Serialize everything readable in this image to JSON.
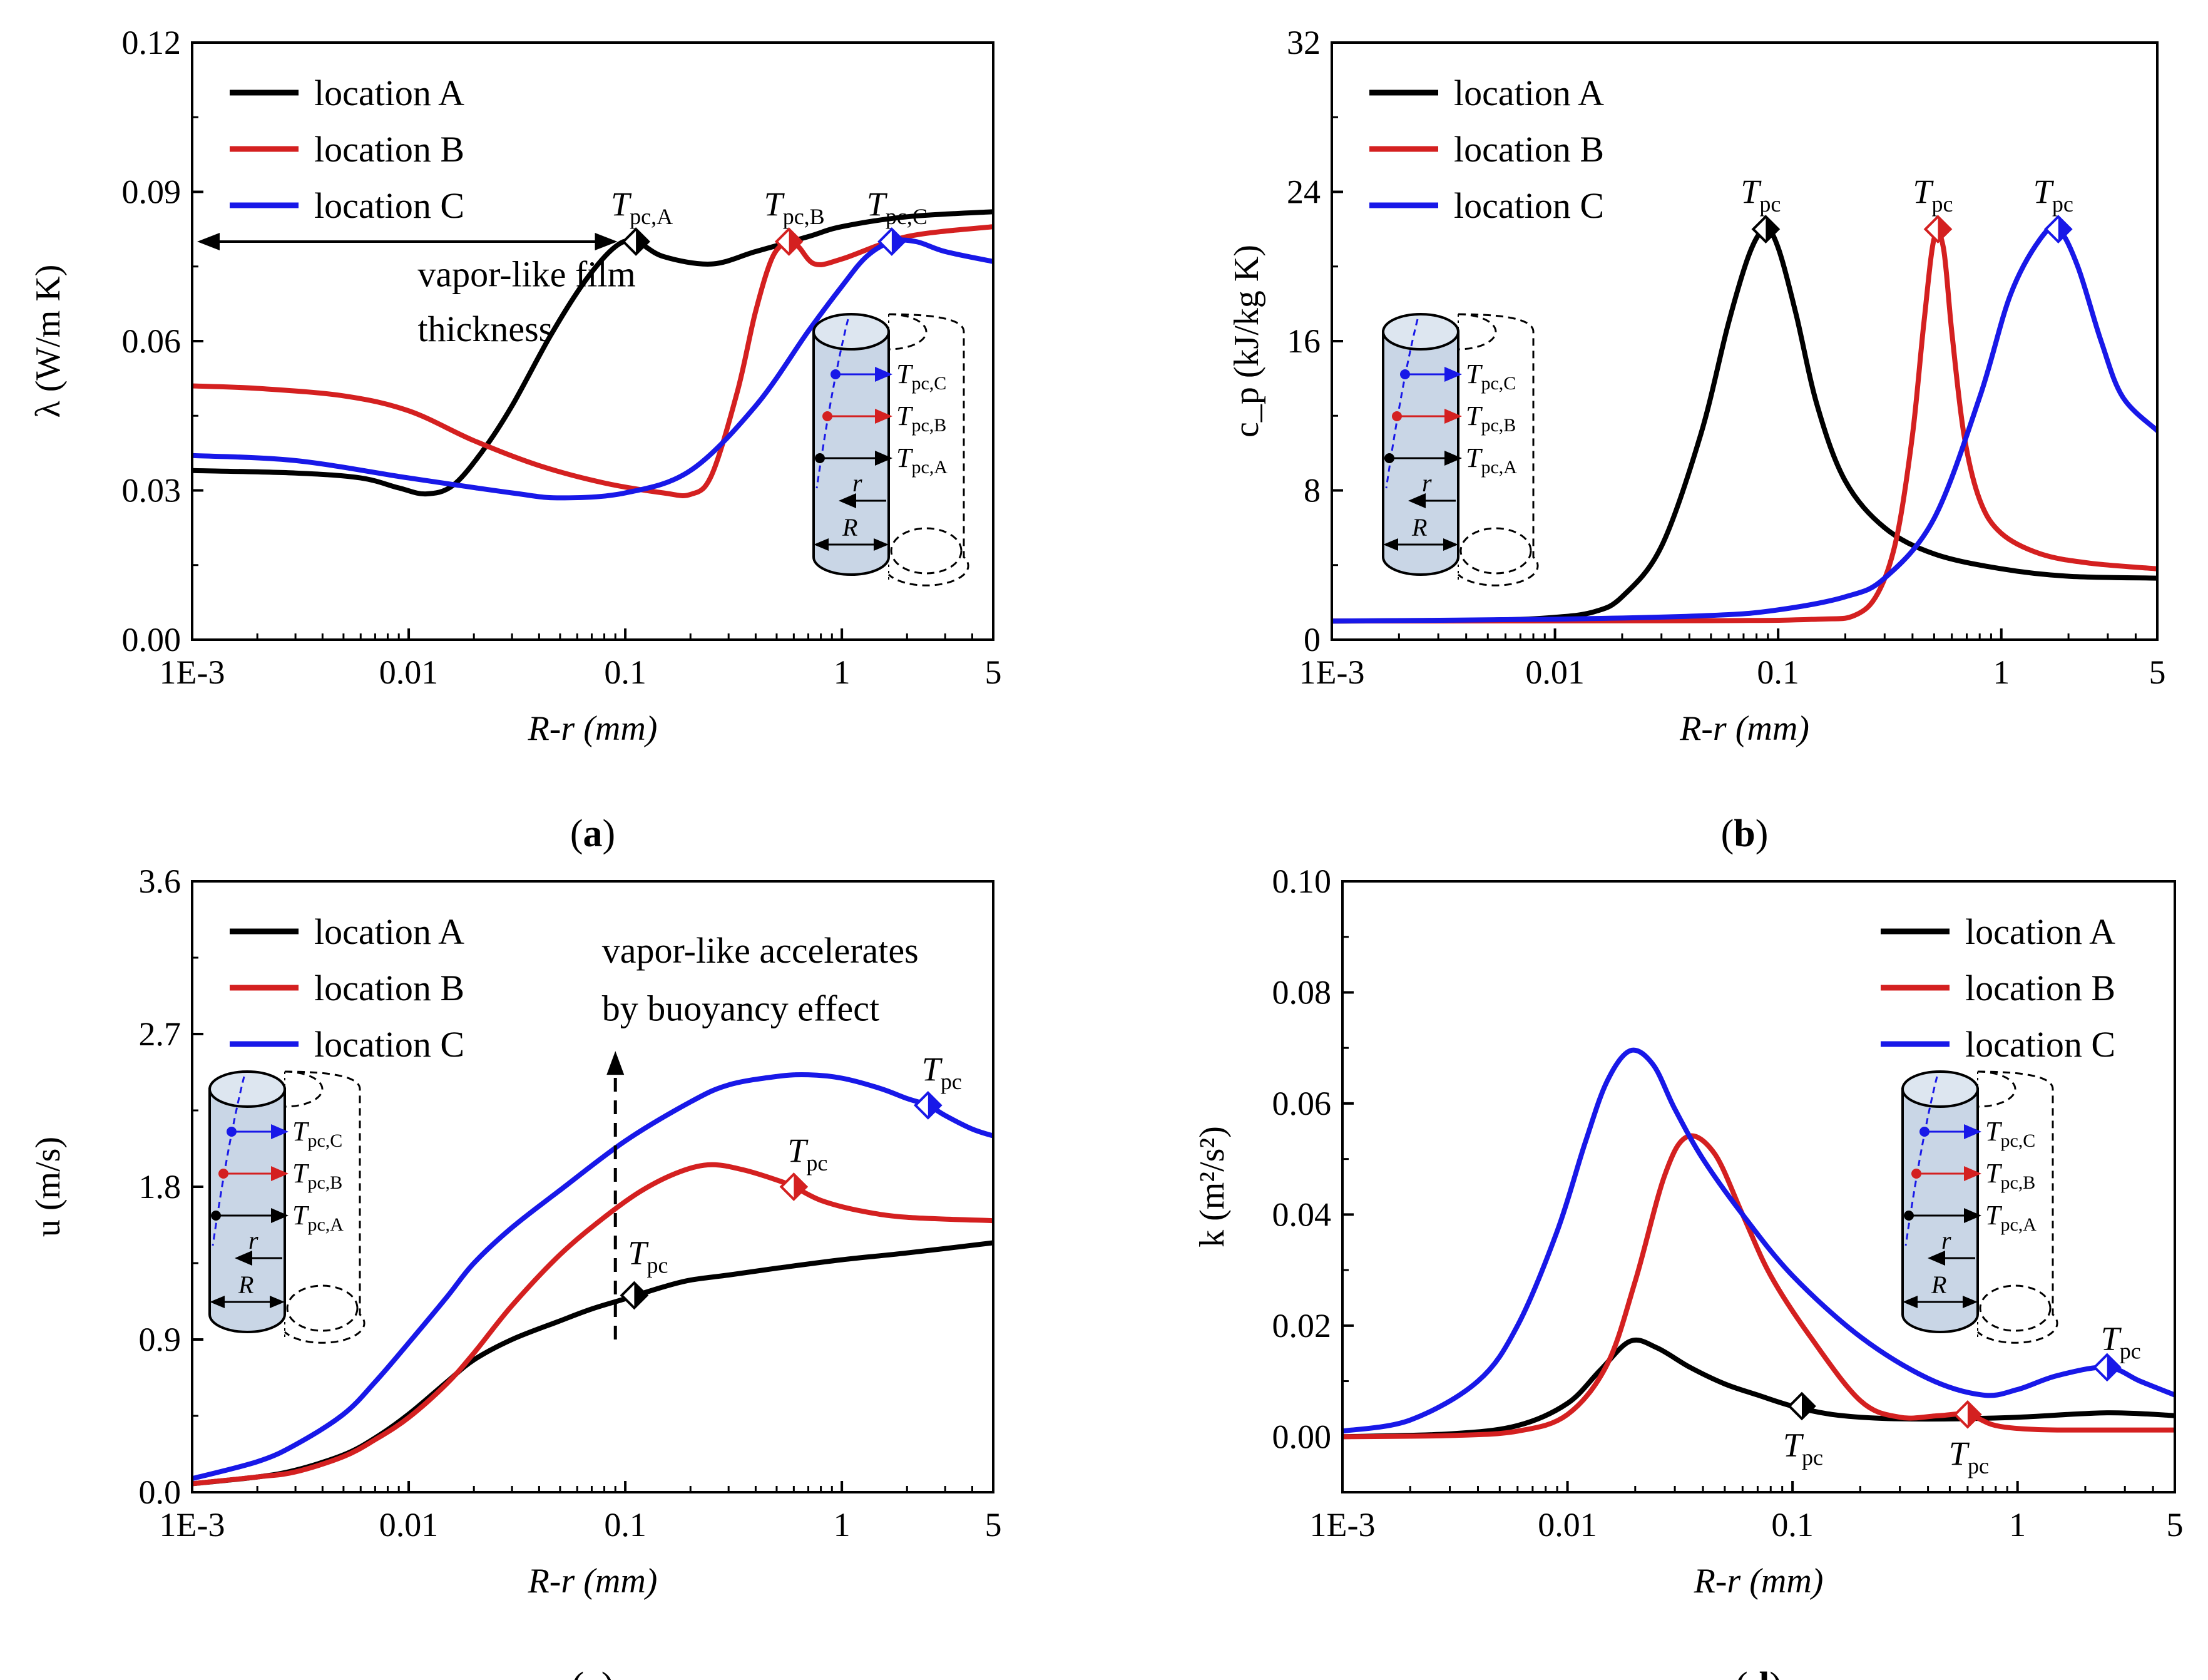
{
  "chart_data": [
    {
      "id": "a",
      "type": "line",
      "panel_label": "a",
      "xlabel": "R-r (mm)",
      "ylabel": "λ (W/m K)",
      "xscale": "log",
      "xlim": [
        0.001,
        5
      ],
      "ylim": [
        0,
        0.12
      ],
      "xticks": [
        0.001,
        0.01,
        0.1,
        1,
        5
      ],
      "xtick_labels": [
        "1E-3",
        "0.01",
        "0.1",
        "1",
        "5"
      ],
      "yticks": [
        0,
        0.03,
        0.06,
        0.09,
        0.12
      ],
      "ytick_labels": [
        "0.00",
        "0.03",
        "0.06",
        "0.09",
        "0.12"
      ],
      "legend": {
        "placement": "top-left",
        "entries": [
          "location A",
          "location B",
          "location C"
        ]
      },
      "series": [
        {
          "name": "location A",
          "color": "#000000",
          "x": [
            0.001,
            0.003,
            0.006,
            0.009,
            0.012,
            0.016,
            0.022,
            0.03,
            0.045,
            0.065,
            0.09,
            0.112,
            0.15,
            0.25,
            0.4,
            0.7,
            1,
            2,
            5
          ],
          "y": [
            0.034,
            0.0335,
            0.0325,
            0.0305,
            0.0293,
            0.031,
            0.038,
            0.047,
            0.061,
            0.072,
            0.079,
            0.08,
            0.077,
            0.0755,
            0.078,
            0.081,
            0.083,
            0.085,
            0.086
          ]
        },
        {
          "name": "location B",
          "color": "#d42020",
          "x": [
            0.001,
            0.002,
            0.005,
            0.01,
            0.02,
            0.04,
            0.08,
            0.15,
            0.2,
            0.25,
            0.33,
            0.4,
            0.48,
            0.57,
            0.63,
            0.75,
            1,
            2,
            5
          ],
          "y": [
            0.051,
            0.0505,
            0.049,
            0.046,
            0.04,
            0.035,
            0.0315,
            0.0295,
            0.0292,
            0.033,
            0.05,
            0.066,
            0.077,
            0.08,
            0.079,
            0.0755,
            0.0765,
            0.081,
            0.083
          ]
        },
        {
          "name": "location C",
          "color": "#1818e8",
          "x": [
            0.001,
            0.003,
            0.01,
            0.03,
            0.05,
            0.1,
            0.2,
            0.4,
            0.7,
            1,
            1.3,
            1.7,
            2.2,
            3,
            5
          ],
          "y": [
            0.037,
            0.036,
            0.0325,
            0.0295,
            0.0285,
            0.0295,
            0.034,
            0.047,
            0.062,
            0.071,
            0.077,
            0.08,
            0.08,
            0.078,
            0.076
          ]
        }
      ],
      "markers": [
        {
          "x": 0.112,
          "y": 0.08,
          "color": "#000000",
          "label_main": "T",
          "label_sub": "pc,A"
        },
        {
          "x": 0.57,
          "y": 0.08,
          "color": "#d42020",
          "label_main": "T",
          "label_sub": "pc,B"
        },
        {
          "x": 1.7,
          "y": 0.08,
          "color": "#1818e8",
          "label_main": "T",
          "label_sub": "pc,C"
        }
      ],
      "annotations": [
        {
          "text": "vapor-like film",
          "x": 0.011,
          "y": 0.071
        },
        {
          "text": "thickness",
          "x": 0.011,
          "y": 0.06
        }
      ],
      "arrows": [
        {
          "x1": 0.001,
          "y1": 0.08,
          "x2": 0.092,
          "y2": 0.08,
          "style": "double"
        }
      ],
      "inset": {
        "position": "right",
        "labels": [
          "T",
          "pc,C",
          "T",
          "pc,B",
          "T",
          "pc,A",
          "r",
          "R"
        ]
      }
    },
    {
      "id": "b",
      "type": "line",
      "panel_label": "b",
      "xlabel": "R-r (mm)",
      "ylabel": "c_p (kJ/kg K)",
      "xscale": "log",
      "xlim": [
        0.001,
        5
      ],
      "ylim": [
        0,
        32
      ],
      "xticks": [
        0.001,
        0.01,
        0.1,
        1,
        5
      ],
      "xtick_labels": [
        "1E-3",
        "0.01",
        "0.1",
        "1",
        "5"
      ],
      "yticks": [
        0,
        8,
        16,
        24,
        32
      ],
      "ytick_labels": [
        "0",
        "8",
        "16",
        "24",
        "32"
      ],
      "legend": {
        "placement": "top-left",
        "entries": [
          "location A",
          "location B",
          "location C"
        ]
      },
      "series": [
        {
          "name": "location A",
          "color": "#000000",
          "x": [
            0.001,
            0.005,
            0.01,
            0.015,
            0.02,
            0.03,
            0.045,
            0.06,
            0.075,
            0.088,
            0.1,
            0.12,
            0.15,
            0.2,
            0.3,
            0.5,
            1,
            2,
            5
          ],
          "y": [
            1.0,
            1.05,
            1.2,
            1.5,
            2.3,
            5.0,
            11.0,
            17.0,
            20.8,
            22.0,
            21.0,
            17.5,
            12.5,
            8.5,
            6.0,
            4.6,
            3.8,
            3.4,
            3.3
          ]
        },
        {
          "name": "location B",
          "color": "#d42020",
          "x": [
            0.001,
            0.05,
            0.15,
            0.22,
            0.28,
            0.34,
            0.4,
            0.45,
            0.5,
            0.55,
            0.6,
            0.68,
            0.8,
            1,
            1.5,
            2.5,
            5
          ],
          "y": [
            1.0,
            1.02,
            1.1,
            1.3,
            2.5,
            5.5,
            11.0,
            17.0,
            21.5,
            21.0,
            16.5,
            11.0,
            7.5,
            5.7,
            4.6,
            4.1,
            3.8
          ]
        },
        {
          "name": "location C",
          "color": "#1818e8",
          "x": [
            0.001,
            0.01,
            0.05,
            0.1,
            0.2,
            0.3,
            0.5,
            0.8,
            1.1,
            1.5,
            1.8,
            2.2,
            2.8,
            3.5,
            5
          ],
          "y": [
            1.0,
            1.1,
            1.3,
            1.6,
            2.3,
            3.3,
            6.5,
            13.0,
            18.5,
            21.5,
            22.0,
            20.0,
            16.0,
            13.0,
            11.2
          ]
        }
      ],
      "markers": [
        {
          "x": 0.088,
          "y": 22.0,
          "color": "#000000",
          "label_main": "T",
          "label_sub": "pc"
        },
        {
          "x": 0.52,
          "y": 22.0,
          "color": "#d42020",
          "label_main": "T",
          "label_sub": "pc"
        },
        {
          "x": 1.8,
          "y": 22.0,
          "color": "#1818e8",
          "label_main": "T",
          "label_sub": "pc"
        }
      ],
      "annotations": [],
      "arrows": [],
      "inset": {
        "position": "left",
        "labels": [
          "T",
          "pc,C",
          "T",
          "pc,B",
          "T",
          "pc,A",
          "r",
          "R"
        ]
      }
    },
    {
      "id": "c",
      "type": "line",
      "panel_label": "c",
      "xlabel": "R-r (mm)",
      "ylabel": "u (m/s)",
      "xscale": "log",
      "xlim": [
        0.001,
        5
      ],
      "ylim": [
        0,
        3.6
      ],
      "xticks": [
        0.001,
        0.01,
        0.1,
        1,
        5
      ],
      "xtick_labels": [
        "1E-3",
        "0.01",
        "0.1",
        "1",
        "5"
      ],
      "yticks": [
        0,
        0.9,
        1.8,
        2.7,
        3.6
      ],
      "ytick_labels": [
        "0.0",
        "0.9",
        "1.8",
        "2.7",
        "3.6"
      ],
      "legend": {
        "placement": "top-left",
        "entries": [
          "location A",
          "location B",
          "location C"
        ]
      },
      "series": [
        {
          "name": "location A",
          "color": "#000000",
          "x": [
            0.001,
            0.002,
            0.003,
            0.005,
            0.007,
            0.01,
            0.015,
            0.02,
            0.03,
            0.05,
            0.07,
            0.1,
            0.15,
            0.2,
            0.3,
            0.5,
            1,
            2,
            5
          ],
          "y": [
            0.05,
            0.09,
            0.13,
            0.22,
            0.32,
            0.46,
            0.65,
            0.78,
            0.9,
            1.01,
            1.08,
            1.14,
            1.21,
            1.25,
            1.28,
            1.32,
            1.37,
            1.41,
            1.47
          ]
        },
        {
          "name": "location B",
          "color": "#d42020",
          "x": [
            0.001,
            0.002,
            0.003,
            0.005,
            0.007,
            0.01,
            0.015,
            0.02,
            0.03,
            0.05,
            0.08,
            0.12,
            0.18,
            0.25,
            0.35,
            0.5,
            0.6,
            0.8,
            1.2,
            2,
            5
          ],
          "y": [
            0.05,
            0.09,
            0.12,
            0.21,
            0.31,
            0.44,
            0.64,
            0.82,
            1.1,
            1.4,
            1.62,
            1.78,
            1.89,
            1.93,
            1.9,
            1.84,
            1.8,
            1.72,
            1.66,
            1.62,
            1.6
          ]
        },
        {
          "name": "location C",
          "color": "#1818e8",
          "x": [
            0.001,
            0.002,
            0.003,
            0.005,
            0.007,
            0.01,
            0.015,
            0.02,
            0.03,
            0.05,
            0.1,
            0.2,
            0.3,
            0.5,
            0.7,
            1,
            1.5,
            2,
            2.5,
            3,
            4,
            5
          ],
          "y": [
            0.08,
            0.18,
            0.28,
            0.46,
            0.65,
            0.88,
            1.15,
            1.35,
            1.56,
            1.78,
            2.07,
            2.3,
            2.4,
            2.45,
            2.46,
            2.44,
            2.38,
            2.32,
            2.28,
            2.22,
            2.14,
            2.1
          ]
        }
      ],
      "markers": [
        {
          "x": 0.11,
          "y": 1.16,
          "color": "#000000",
          "label_main": "T",
          "label_sub": "pc"
        },
        {
          "x": 0.6,
          "y": 1.8,
          "color": "#d42020",
          "label_main": "T",
          "label_sub": "pc"
        },
        {
          "x": 2.5,
          "y": 2.28,
          "color": "#1818e8",
          "label_main": "T",
          "label_sub": "pc"
        }
      ],
      "annotations": [
        {
          "text": "vapor-like accelerates",
          "x": 0.078,
          "y": 3.12
        },
        {
          "text": "by buoyancy effect",
          "x": 0.078,
          "y": 2.78
        }
      ],
      "arrows": [
        {
          "x1": 0.09,
          "y1": 0.9,
          "x2": 0.09,
          "y2": 2.6,
          "style": "dashed-up"
        }
      ],
      "inset": {
        "position": "left",
        "labels": [
          "T",
          "pc,C",
          "T",
          "pc,B",
          "T",
          "pc,A",
          "r",
          "R"
        ]
      }
    },
    {
      "id": "d",
      "type": "line",
      "panel_label": "d",
      "xlabel": "R-r (mm)",
      "ylabel": "k (m²/s²)",
      "xscale": "log",
      "xlim": [
        0.001,
        5
      ],
      "ylim": [
        -0.01,
        0.1
      ],
      "xticks": [
        0.001,
        0.01,
        0.1,
        1,
        5
      ],
      "xtick_labels": [
        "1E-3",
        "0.01",
        "0.1",
        "1",
        "5"
      ],
      "yticks": [
        0,
        0.02,
        0.04,
        0.06,
        0.08,
        0.1
      ],
      "ytick_labels": [
        "0.00",
        "0.02",
        "0.04",
        "0.06",
        "0.08",
        "0.10"
      ],
      "legend": {
        "placement": "top-right",
        "entries": [
          "location A",
          "location B",
          "location C"
        ]
      },
      "series": [
        {
          "name": "location A",
          "color": "#000000",
          "x": [
            0.001,
            0.003,
            0.006,
            0.01,
            0.014,
            0.019,
            0.025,
            0.035,
            0.05,
            0.07,
            0.1,
            0.15,
            0.25,
            0.5,
            1,
            2.5,
            5
          ],
          "y": [
            0.0,
            0.0005,
            0.002,
            0.006,
            0.012,
            0.0172,
            0.016,
            0.0125,
            0.0095,
            0.0075,
            0.0055,
            0.004,
            0.0033,
            0.0032,
            0.0035,
            0.0043,
            0.0038
          ]
        },
        {
          "name": "location B",
          "color": "#d42020",
          "x": [
            0.001,
            0.003,
            0.006,
            0.01,
            0.015,
            0.02,
            0.027,
            0.034,
            0.045,
            0.06,
            0.08,
            0.12,
            0.2,
            0.3,
            0.45,
            0.6,
            0.8,
            1.2,
            2,
            5
          ],
          "y": [
            0.0,
            0.0002,
            0.001,
            0.004,
            0.013,
            0.028,
            0.047,
            0.054,
            0.051,
            0.04,
            0.029,
            0.018,
            0.0065,
            0.0035,
            0.0038,
            0.004,
            0.002,
            0.0013,
            0.0012,
            0.0012
          ]
        },
        {
          "name": "location C",
          "color": "#1818e8",
          "x": [
            0.001,
            0.002,
            0.004,
            0.006,
            0.009,
            0.012,
            0.015,
            0.019,
            0.024,
            0.03,
            0.04,
            0.06,
            0.1,
            0.2,
            0.4,
            0.7,
            1,
            1.5,
            2.5,
            3.5,
            5
          ],
          "y": [
            0.001,
            0.003,
            0.01,
            0.02,
            0.037,
            0.053,
            0.064,
            0.0695,
            0.067,
            0.059,
            0.05,
            0.04,
            0.029,
            0.018,
            0.0105,
            0.0075,
            0.0085,
            0.011,
            0.0125,
            0.01,
            0.0075
          ]
        }
      ],
      "markers": [
        {
          "x": 0.11,
          "y": 0.0055,
          "color": "#000000",
          "label_main": "T",
          "label_sub": "pc"
        },
        {
          "x": 0.6,
          "y": 0.004,
          "color": "#d42020",
          "label_main": "T",
          "label_sub": "pc"
        },
        {
          "x": 2.5,
          "y": 0.0125,
          "color": "#1818e8",
          "label_main": "T",
          "label_sub": "pc"
        }
      ],
      "annotations": [],
      "arrows": [],
      "inset": {
        "position": "right",
        "labels": [
          "T",
          "pc,C",
          "T",
          "pc,B",
          "T",
          "pc,A",
          "r",
          "R"
        ]
      }
    }
  ]
}
